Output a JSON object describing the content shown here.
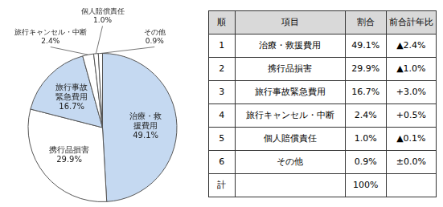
{
  "chart_data": [
    {
      "type": "pie",
      "categories": [
        "治療・救援費用",
        "携行品損害",
        "旅行事故緊急費用",
        "旅行キャンセル・中断",
        "個人賠償責任",
        "その他"
      ],
      "values": [
        49.1,
        29.9,
        16.7,
        2.4,
        1.0,
        0.9
      ],
      "value_labels": [
        "49.1%",
        "29.9%",
        "16.7%",
        "2.4%",
        "1.0%",
        "0.9%"
      ],
      "colors": [
        "#c5d9f1",
        "#ffffff",
        "#c5d9f1",
        "#ffffff",
        "#ffffff",
        "#ffffff"
      ],
      "data_labels": true
    },
    {
      "type": "table",
      "columns": [
        "順",
        "項目",
        "割合",
        "前合計年比"
      ],
      "rows": [
        [
          "1",
          "治療・救援費用",
          "49.1%",
          "▲2.4%"
        ],
        [
          "2",
          "携行品損害",
          "29.9%",
          "▲1.0%"
        ],
        [
          "3",
          "旅行事故緊急費用",
          "16.7%",
          "+3.0%"
        ],
        [
          "4",
          "旅行キャンセル・中断",
          "2.4%",
          "+0.5%"
        ],
        [
          "5",
          "個人賠償責任",
          "1.0%",
          "▲0.1%"
        ],
        [
          "6",
          "その他",
          "0.9%",
          "±0.0%"
        ],
        [
          "計",
          null,
          "100%",
          null
        ]
      ]
    }
  ]
}
